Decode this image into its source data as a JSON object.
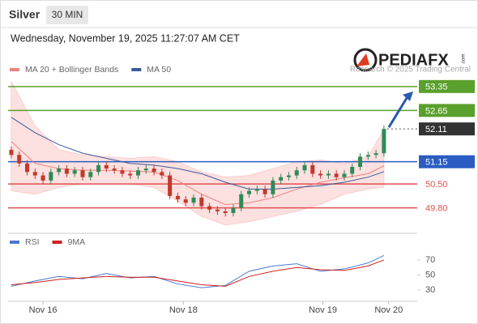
{
  "header": {
    "title": "Silver",
    "timeframe": "30 MIN",
    "datetime": "Wednesday, November 19, 2025 11:27:07 AM CET"
  },
  "logo": {
    "text": "PEDIAFX",
    "suffix": ".com"
  },
  "watermark": "Research © 2025 Trading Central",
  "chart_data": [
    {
      "type": "candlestick",
      "xlim": [
        -0.4,
        51.2
      ],
      "ylim": [
        49.2,
        53.63
      ],
      "up_color": "#2e8b57",
      "down_color": "#c0392b",
      "open": [
        51.5,
        51.35,
        51.1,
        50.85,
        50.75,
        50.6,
        50.85,
        50.95,
        50.8,
        50.9,
        50.7,
        50.85,
        51.05,
        50.95,
        50.9,
        50.8,
        50.75,
        50.9,
        50.95,
        50.85,
        50.75,
        50.15,
        50.05,
        49.95,
        50.1,
        49.85,
        49.75,
        49.7,
        49.65,
        49.8,
        50.2,
        50.3,
        50.35,
        50.2,
        50.6,
        50.7,
        50.75,
        50.9,
        51.05,
        50.8,
        50.75,
        50.8,
        50.7,
        50.8,
        51.0,
        51.3,
        51.35,
        51.4
      ],
      "high": [
        51.6,
        51.45,
        51.2,
        50.95,
        50.85,
        50.95,
        51.05,
        51.05,
        51.0,
        51.0,
        50.95,
        51.15,
        51.15,
        51.05,
        51.0,
        50.9,
        51.0,
        51.05,
        51.05,
        50.95,
        50.85,
        50.25,
        50.15,
        50.2,
        50.2,
        49.95,
        49.85,
        49.8,
        49.9,
        50.3,
        50.4,
        50.45,
        50.45,
        50.7,
        50.8,
        50.85,
        51.0,
        51.15,
        51.15,
        50.9,
        50.9,
        50.9,
        50.9,
        51.1,
        51.4,
        51.45,
        51.5,
        52.21
      ],
      "low": [
        51.25,
        51.0,
        50.75,
        50.65,
        50.5,
        50.5,
        50.75,
        50.7,
        50.7,
        50.6,
        50.6,
        50.75,
        50.85,
        50.8,
        50.7,
        50.65,
        50.65,
        50.8,
        50.75,
        50.65,
        50.05,
        49.95,
        49.85,
        49.85,
        49.75,
        49.65,
        49.6,
        49.55,
        49.55,
        49.7,
        50.1,
        50.2,
        50.1,
        50.1,
        50.5,
        50.6,
        50.65,
        50.8,
        50.7,
        50.65,
        50.65,
        50.6,
        50.6,
        50.7,
        50.9,
        51.2,
        51.25,
        51.3
      ],
      "close": [
        51.35,
        51.1,
        50.85,
        50.75,
        50.6,
        50.85,
        50.95,
        50.8,
        50.9,
        50.7,
        50.85,
        51.05,
        50.95,
        50.9,
        50.8,
        50.75,
        50.9,
        50.95,
        50.85,
        50.75,
        50.15,
        50.05,
        49.95,
        50.1,
        49.85,
        49.75,
        49.7,
        49.65,
        49.8,
        50.2,
        50.3,
        50.35,
        50.2,
        50.6,
        50.7,
        50.75,
        50.9,
        51.05,
        50.8,
        50.75,
        50.8,
        50.7,
        50.8,
        51.0,
        51.3,
        51.35,
        51.4,
        52.11
      ],
      "line_x": [
        0,
        3,
        6,
        9,
        12,
        15,
        18,
        21,
        24,
        27,
        30,
        33,
        36,
        39,
        42,
        45,
        47
      ],
      "series": [
        {
          "name": "MA 20 + Bollinger Bands",
          "color": "#f08080",
          "band_color": "#fde0e0",
          "values": [
            51.74,
            51.1,
            50.95,
            50.9,
            50.9,
            50.88,
            50.85,
            50.6,
            50.2,
            49.9,
            49.95,
            50.1,
            50.35,
            50.55,
            50.68,
            50.8,
            51.03
          ],
          "upper": [
            53.5,
            52.2,
            51.5,
            51.35,
            51.3,
            51.25,
            51.3,
            51.15,
            50.85,
            50.7,
            50.75,
            50.95,
            51.15,
            51.2,
            51.1,
            51.3,
            52.1
          ],
          "lower": [
            50.3,
            50.2,
            50.4,
            50.5,
            50.5,
            50.5,
            50.4,
            50.0,
            49.55,
            49.3,
            49.4,
            49.55,
            49.7,
            49.9,
            50.2,
            50.35,
            50.4
          ]
        },
        {
          "name": "MA 50",
          "color": "#3a5a9a",
          "values": [
            52.45,
            52.0,
            51.65,
            51.4,
            51.25,
            51.1,
            51.05,
            50.95,
            50.8,
            50.55,
            50.35,
            50.35,
            50.4,
            50.45,
            50.55,
            50.7,
            50.86
          ]
        }
      ],
      "levels": [
        {
          "value": 53.35,
          "color": "#5aa02c",
          "boxed": true
        },
        {
          "value": 52.65,
          "color": "#5aa02c",
          "boxed": true
        },
        {
          "value": 52.11,
          "color": "#333333",
          "boxed": true,
          "current": true
        },
        {
          "value": 51.15,
          "color": "#2a5cc4",
          "boxed": true
        },
        {
          "value": 50.5,
          "label": "50.50",
          "color": "#e05050",
          "boxed": false
        },
        {
          "value": 49.8,
          "label": "49.80",
          "color": "#e05050",
          "boxed": false
        }
      ]
    },
    {
      "type": "line",
      "xlim": [
        -0.4,
        51.2
      ],
      "ylim": [
        17,
        84
      ],
      "yticks": [
        30,
        50,
        70
      ],
      "x": [
        0,
        3,
        6,
        9,
        12,
        15,
        18,
        21,
        24,
        27,
        30,
        33,
        36,
        39,
        42,
        45,
        47
      ],
      "xticks": [
        {
          "value": 4,
          "label": "Nov 16"
        },
        {
          "value": 21.7,
          "label": "Nov 18"
        },
        {
          "value": 39.3,
          "label": "Nov 19"
        },
        {
          "value": 47.6,
          "label": "Nov 20"
        }
      ],
      "series": [
        {
          "name": "RSI",
          "color": "#4a78d0",
          "values": [
            35,
            42,
            48,
            45,
            52,
            46,
            48,
            38,
            33,
            36,
            55,
            62,
            65,
            55,
            58,
            66,
            76
          ]
        },
        {
          "name": "9MA",
          "color": "#d02020",
          "values": [
            37,
            40,
            44,
            46,
            48,
            47,
            47,
            42,
            37,
            35,
            48,
            55,
            60,
            57,
            56,
            62,
            70
          ]
        }
      ]
    }
  ]
}
